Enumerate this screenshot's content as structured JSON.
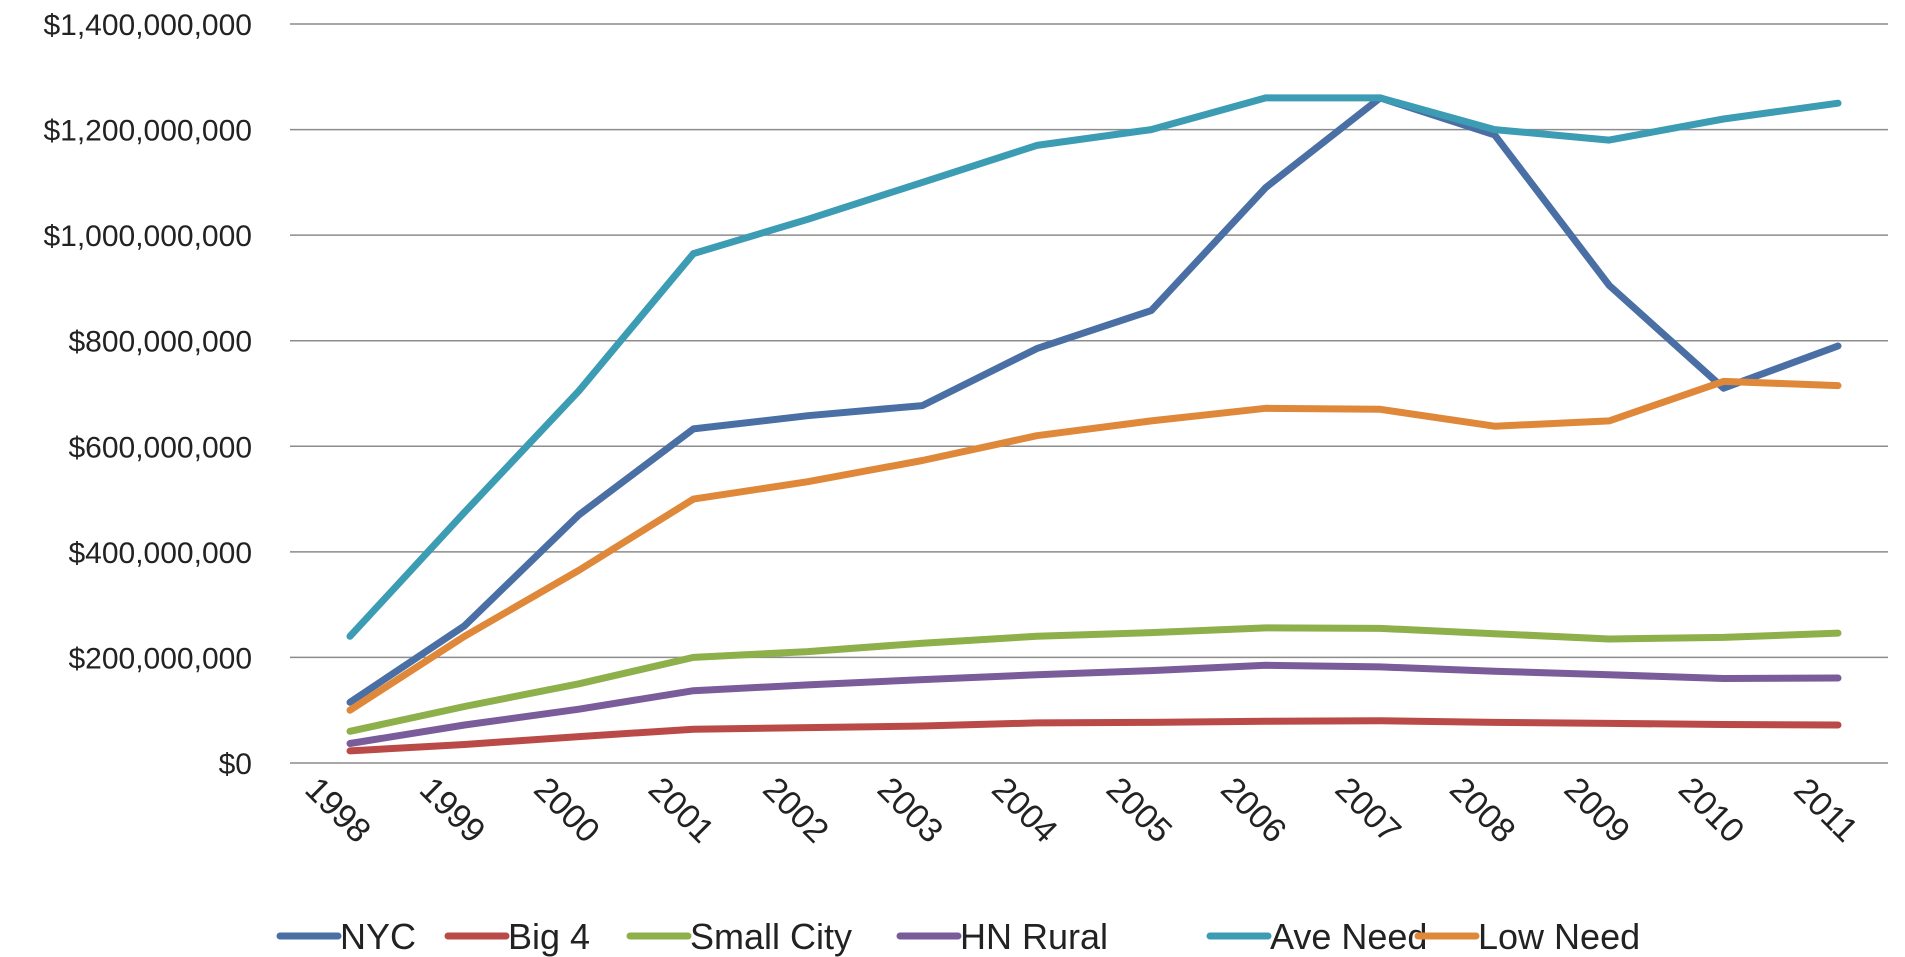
{
  "chart_data": {
    "type": "line",
    "title": "",
    "xlabel": "",
    "ylabel": "",
    "categories": [
      "1998",
      "1999",
      "2000",
      "2001",
      "2002",
      "2003",
      "2004",
      "2005",
      "2006",
      "2007",
      "2008",
      "2009",
      "2010",
      "2011"
    ],
    "ylim": [
      0,
      1400000000
    ],
    "yticks": [
      0,
      200000000,
      400000000,
      600000000,
      800000000,
      1000000000,
      1200000000,
      1400000000
    ],
    "ytick_labels": [
      "$0",
      "$200,000,000",
      "$400,000,000",
      "$600,000,000",
      "$800,000,000",
      "$1,000,000,000",
      "$1,200,000,000",
      "$1,400,000,000"
    ],
    "grid": true,
    "legend_position": "bottom",
    "series": [
      {
        "name": "NYC",
        "color": "#4a6fa5",
        "values": [
          115000000,
          260000000,
          470000000,
          633000000,
          658000000,
          677000000,
          785000000,
          857000000,
          1090000000,
          1260000000,
          1190000000,
          905000000,
          710000000,
          790000000
        ]
      },
      {
        "name": "Big 4",
        "color": "#b94a48",
        "values": [
          23000000,
          35000000,
          50000000,
          64000000,
          67000000,
          70000000,
          76000000,
          77000000,
          79000000,
          80000000,
          77000000,
          75000000,
          73000000,
          72000000
        ]
      },
      {
        "name": "Small City",
        "color": "#8db04a",
        "values": [
          60000000,
          107000000,
          150000000,
          200000000,
          211000000,
          227000000,
          240000000,
          247000000,
          256000000,
          255000000,
          245000000,
          235000000,
          238000000,
          246000000
        ]
      },
      {
        "name": "HN Rural",
        "color": "#7a5c9a",
        "values": [
          37000000,
          72000000,
          102000000,
          137000000,
          148000000,
          158000000,
          167000000,
          175000000,
          185000000,
          182000000,
          174000000,
          167000000,
          160000000,
          161000000
        ]
      },
      {
        "name": "Ave Need",
        "color": "#3c9cb3",
        "values": [
          240000000,
          475000000,
          705000000,
          965000000,
          1030000000,
          1100000000,
          1170000000,
          1200000000,
          1260000000,
          1260000000,
          1200000000,
          1180000000,
          1220000000,
          1250000000
        ]
      },
      {
        "name": "Low Need",
        "color": "#e0883a",
        "values": [
          100000000,
          240000000,
          365000000,
          500000000,
          533000000,
          573000000,
          620000000,
          648000000,
          672000000,
          670000000,
          638000000,
          648000000,
          723000000,
          715000000
        ]
      }
    ]
  }
}
